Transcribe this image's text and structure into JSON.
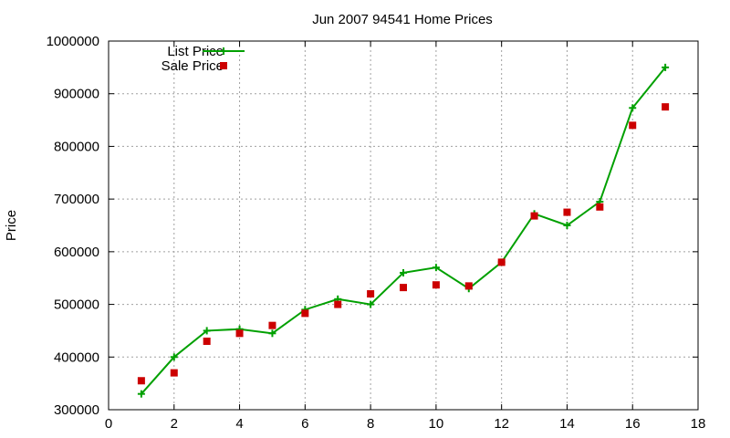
{
  "chart_data": {
    "type": "line",
    "title": "Jun 2007 94541 Home Prices",
    "xlabel": "",
    "ylabel": "Price",
    "xlim": [
      0,
      18
    ],
    "ylim": [
      300000,
      1000000
    ],
    "xticks": [
      0,
      2,
      4,
      6,
      8,
      10,
      12,
      14,
      16,
      18
    ],
    "yticks": [
      300000,
      400000,
      500000,
      600000,
      700000,
      800000,
      900000,
      1000000
    ],
    "grid": true,
    "legend_position": "top-left",
    "series": [
      {
        "name": "List Price",
        "style": "line-plus",
        "color": "#00a000",
        "x": [
          1,
          2,
          3,
          4,
          5,
          6,
          7,
          8,
          9,
          10,
          11,
          12,
          13,
          14,
          15,
          16,
          17
        ],
        "y": [
          330000,
          400000,
          450000,
          453000,
          445000,
          490000,
          510000,
          500000,
          560000,
          570000,
          530000,
          580000,
          672000,
          650000,
          695000,
          873000,
          950000
        ]
      },
      {
        "name": "Sale Price",
        "style": "square-points",
        "color": "#cc0000",
        "x": [
          1,
          2,
          3,
          4,
          5,
          6,
          7,
          8,
          9,
          10,
          11,
          12,
          13,
          14,
          15,
          16,
          17
        ],
        "y": [
          355000,
          370000,
          430000,
          445000,
          460000,
          483000,
          500000,
          520000,
          532000,
          537000,
          535000,
          580000,
          668000,
          675000,
          685000,
          840000,
          875000
        ]
      }
    ]
  }
}
